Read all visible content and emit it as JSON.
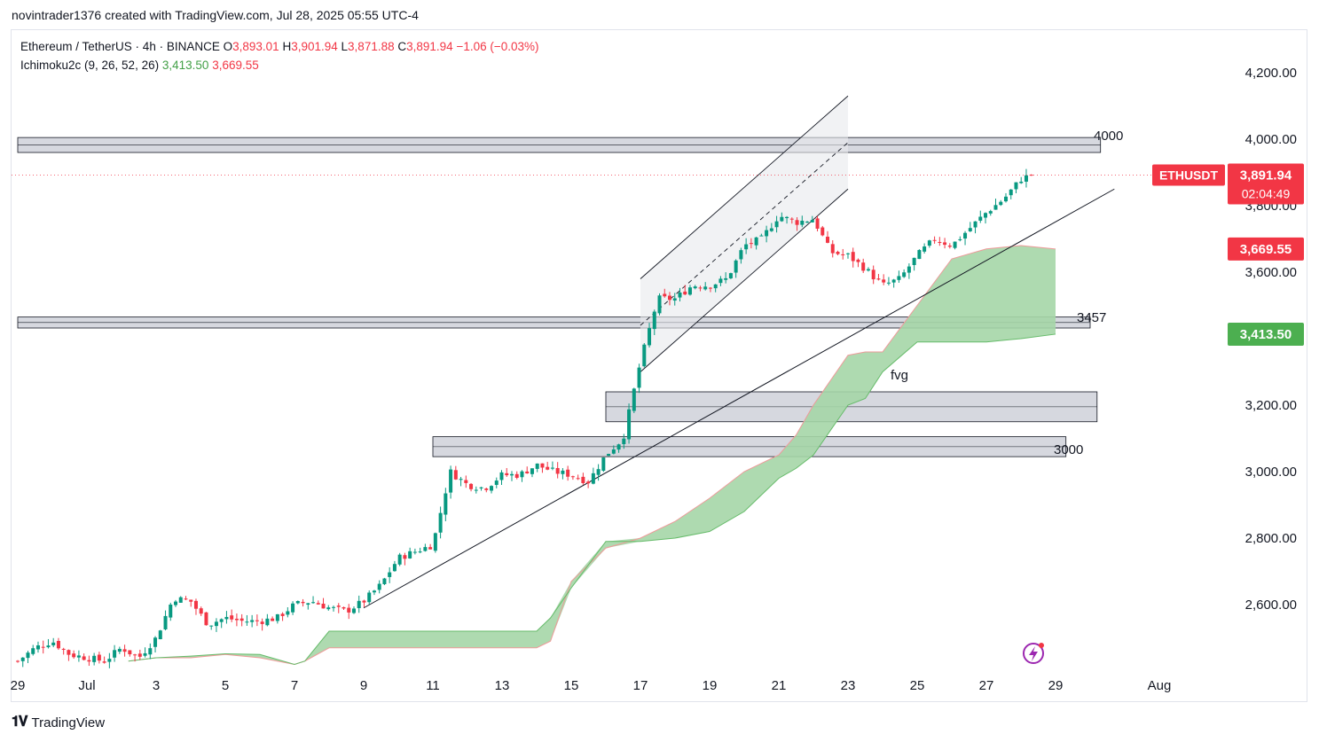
{
  "attribution": "novintrader1376 created with TradingView.com, Jul 28, 2025 05:55 UTC-4",
  "legend": {
    "symbol_line": "Ethereum / TetherUS · 4h · BINANCE",
    "o_label": "O",
    "o_value": "3,893.01",
    "h_label": "H",
    "h_value": "3,901.94",
    "l_label": "L",
    "l_value": "3,871.88",
    "c_label": "C",
    "c_value": "3,891.94",
    "change": "−1.06 (−0.03%)",
    "indicator_name": "Ichimoku2c (9, 26, 52, 26)",
    "indicator_a": "3,413.50",
    "indicator_b": "3,669.55"
  },
  "price_axis": {
    "ticks": [
      {
        "label": "4,200.00",
        "value": 4200
      },
      {
        "label": "4,000.00",
        "value": 4000
      },
      {
        "label": "3,800.00",
        "value": 3800
      },
      {
        "label": "3,600.00",
        "value": 3600
      },
      {
        "label": "3,200.00",
        "value": 3200
      },
      {
        "label": "3,000.00",
        "value": 3000
      },
      {
        "label": "2,800.00",
        "value": 2800
      },
      {
        "label": "2,600.00",
        "value": 2600
      }
    ]
  },
  "time_axis": {
    "ticks": [
      {
        "label": "29",
        "day": -2
      },
      {
        "label": "Jul",
        "day": 0
      },
      {
        "label": "3",
        "day": 2
      },
      {
        "label": "5",
        "day": 4
      },
      {
        "label": "7",
        "day": 6
      },
      {
        "label": "9",
        "day": 8
      },
      {
        "label": "11",
        "day": 10
      },
      {
        "label": "13",
        "day": 12
      },
      {
        "label": "15",
        "day": 14
      },
      {
        "label": "17",
        "day": 16
      },
      {
        "label": "19",
        "day": 18
      },
      {
        "label": "21",
        "day": 20
      },
      {
        "label": "23",
        "day": 22
      },
      {
        "label": "25",
        "day": 24
      },
      {
        "label": "27",
        "day": 26
      },
      {
        "label": "29",
        "day": 28
      },
      {
        "label": "Aug",
        "day": 31
      }
    ]
  },
  "price_labels": {
    "symbol_tag": "ETHUSDT",
    "last_price": "3,891.94",
    "countdown": "02:04:49",
    "span_b": "3,669.55",
    "span_a": "3,413.50",
    "last_value": 3891.94,
    "span_b_value": 3669.55,
    "span_a_value": 3413.5
  },
  "zones": [
    {
      "label": "4000",
      "top": 4005,
      "bottom": 3960,
      "start_day": -2.0,
      "end_day": 29.3
    },
    {
      "label": "3457",
      "top": 3465,
      "bottom": 3432,
      "start_day": -2.0,
      "end_day": 29.0
    },
    {
      "label": "fvg",
      "top": 3240,
      "bottom": 3150,
      "start_day": 15.0,
      "end_day": 29.2
    },
    {
      "label": "3000",
      "top": 3105,
      "bottom": 3045,
      "start_day": 10.0,
      "end_day": 28.3
    }
  ],
  "colors": {
    "up": "#089981",
    "down": "#f23645",
    "cloud": "#a5d6a7",
    "cloud_edge_b": "#ef9a9a",
    "cloud_edge_a": "#66bb6a",
    "zone_fill": "#d1d4dc",
    "label_red": "#f23645",
    "label_green": "#4caf50"
  },
  "chart_data": {
    "type": "candlestick",
    "title": "Ethereum / TetherUS · 4h · BINANCE",
    "interval": "4h",
    "xlabel": "",
    "ylabel": "",
    "ylim": [
      2450,
      4330
    ],
    "xlim_days": [
      -2.2,
      32
    ],
    "close_series_anchor_days": [
      -2,
      -1.5,
      -1,
      -0.5,
      0,
      0.5,
      1,
      1.5,
      2,
      2.5,
      3,
      3.5,
      4,
      4.5,
      5,
      5.5,
      6,
      6.5,
      7,
      7.5,
      8,
      8.5,
      9,
      9.5,
      10,
      10.5,
      11,
      11.5,
      12,
      12.5,
      13,
      13.5,
      14,
      14.5,
      15,
      15.5,
      16,
      16.5,
      17,
      17.5,
      18,
      18.5,
      19,
      19.5,
      20,
      20.5,
      21,
      21.5,
      22,
      22.5,
      23,
      23.5,
      24,
      24.5,
      25,
      25.5,
      26,
      26.5,
      27,
      27.3
    ],
    "close_series_anchor_values": [
      2430,
      2470,
      2490,
      2450,
      2440,
      2430,
      2470,
      2440,
      2500,
      2620,
      2610,
      2540,
      2560,
      2550,
      2550,
      2560,
      2600,
      2610,
      2590,
      2580,
      2610,
      2660,
      2740,
      2760,
      2780,
      3000,
      2960,
      2950,
      2990,
      2990,
      3020,
      3000,
      2990,
      2970,
      3050,
      3100,
      3330,
      3520,
      3520,
      3560,
      3560,
      3580,
      3680,
      3700,
      3770,
      3750,
      3760,
      3660,
      3650,
      3610,
      3560,
      3580,
      3650,
      3700,
      3680,
      3730,
      3780,
      3820,
      3880,
      3891.94
    ],
    "cloud_day_anchors": [
      1.2,
      2,
      3,
      4,
      5,
      6,
      6.3,
      7,
      8,
      9,
      10,
      11,
      12,
      13,
      13.4,
      14,
      15,
      16,
      17,
      18,
      19,
      20,
      20.5,
      21,
      22,
      22.5,
      23,
      24,
      25,
      26,
      27,
      28
    ],
    "cloud_span_a": [
      2430,
      2440,
      2445,
      2452,
      2450,
      2420,
      2430,
      2520,
      2520,
      2520,
      2520,
      2520,
      2520,
      2520,
      2560,
      2650,
      2790,
      2790,
      2800,
      2820,
      2880,
      2980,
      3010,
      3050,
      3200,
      3220,
      3300,
      3390,
      3390,
      3390,
      3400,
      3413.5
    ],
    "cloud_span_b": [
      2430,
      2440,
      2440,
      2450,
      2440,
      2420,
      2430,
      2470,
      2470,
      2470,
      2470,
      2470,
      2470,
      2470,
      2490,
      2670,
      2770,
      2800,
      2850,
      2920,
      3000,
      3050,
      3110,
      3200,
      3350,
      3360,
      3360,
      3500,
      3640,
      3670,
      3680,
      3669.55
    ],
    "candle_count": 200,
    "last_ohlc": {
      "open": 3893.01,
      "high": 3901.94,
      "low": 3871.88,
      "close": 3891.94,
      "change": -1.06,
      "change_pct": -0.03
    },
    "zones": [
      {
        "label": "4000",
        "top": 4005,
        "bottom": 3960
      },
      {
        "label": "3457",
        "top": 3465,
        "bottom": 3432
      },
      {
        "label": "fvg",
        "top": 3240,
        "bottom": 3150
      },
      {
        "label": "3000",
        "top": 3105,
        "bottom": 3045
      }
    ],
    "trendline": {
      "from_day": 8.0,
      "from_price": 2590,
      "to_day": 29.7,
      "to_price": 3850
    },
    "channel": {
      "upper": {
        "from_day": 16.0,
        "from_price": 3580,
        "to_day": 22.0,
        "to_price": 4130
      },
      "lower": {
        "from_day": 16.0,
        "from_price": 3300,
        "to_day": 22.0,
        "to_price": 3850
      },
      "mid": {
        "from_day": 16.0,
        "from_price": 3440,
        "to_day": 22.0,
        "to_price": 3990
      }
    },
    "last_price_line": 3891.94
  }
}
